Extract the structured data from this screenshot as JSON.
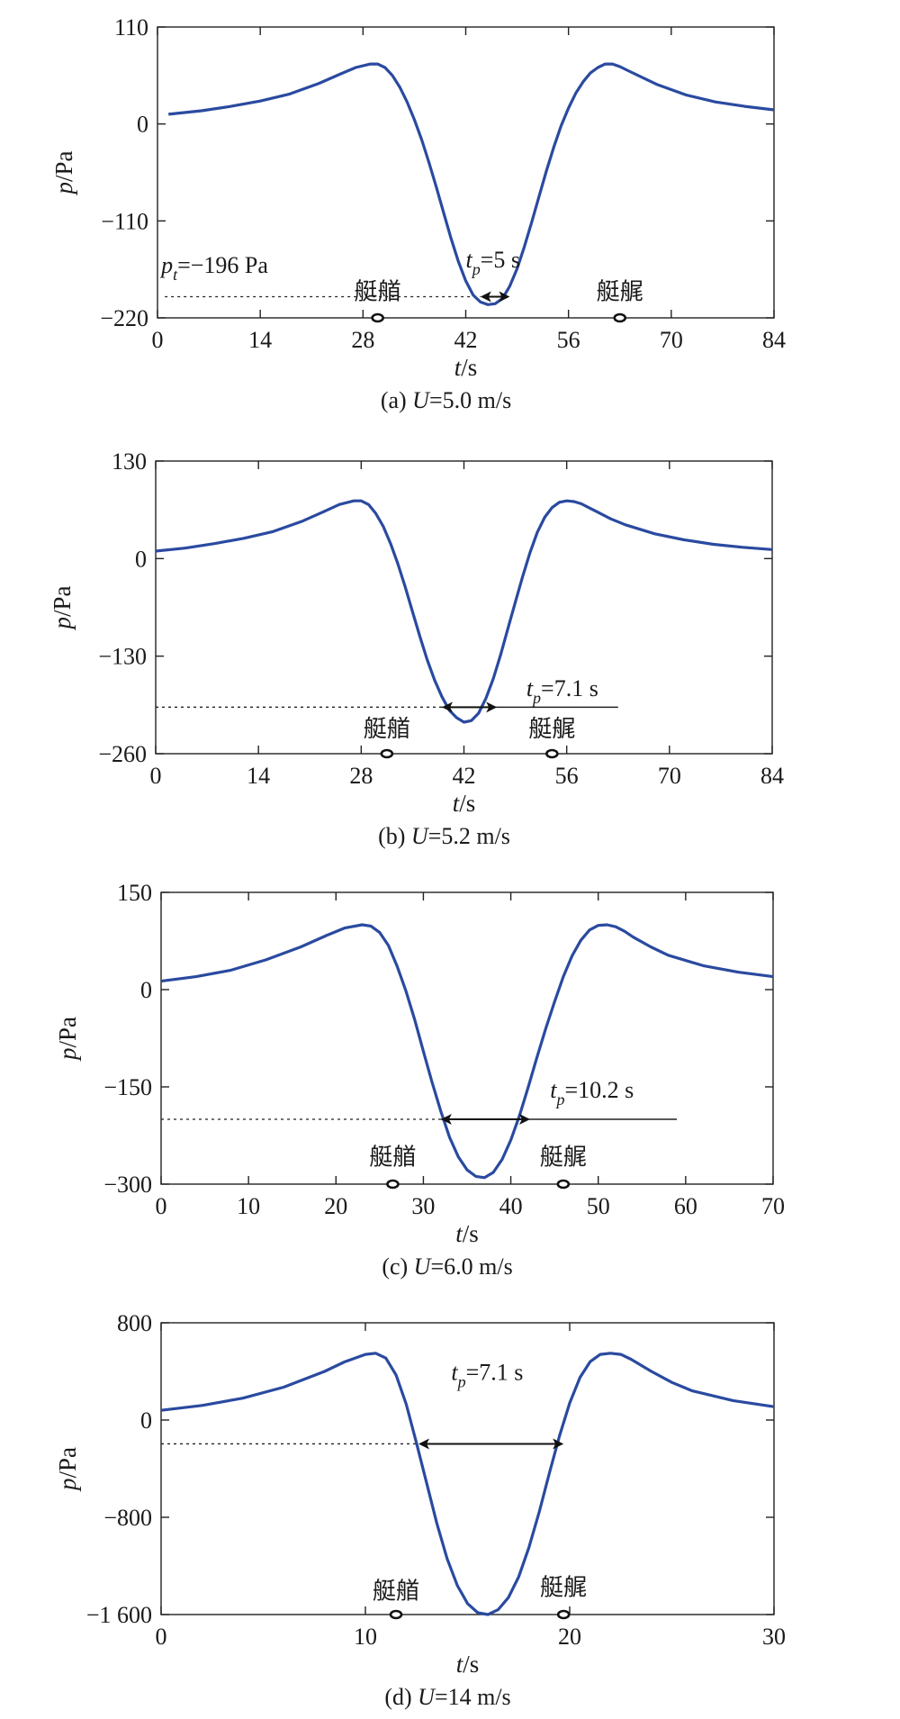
{
  "colors": {
    "curve": "#2a4aa0",
    "axis": "#222222"
  },
  "chart_data": [
    {
      "type": "line",
      "caption_prefix": "(a) ",
      "caption_var": "U",
      "caption_value": "=5.0 m/s",
      "ylabel_var": "p",
      "ylabel_unit": "/Pa",
      "xlabel_var": "t",
      "xlabel_unit": "/s",
      "xlim": [
        0,
        84
      ],
      "ylim": [
        -220,
        110
      ],
      "xticks": [
        0,
        14,
        28,
        42,
        56,
        70,
        84
      ],
      "yticks": [
        110,
        0,
        -110,
        -220
      ],
      "ytick_labels": [
        "110",
        "0",
        "−110",
        "−220"
      ],
      "series": [
        {
          "x": [
            1.5,
            6,
            10,
            14,
            18,
            22,
            25,
            27,
            29,
            30,
            31,
            32,
            33,
            34,
            35,
            36,
            37,
            38,
            39,
            40,
            41,
            42,
            43,
            44,
            45,
            46,
            47,
            48,
            49,
            50,
            51,
            52,
            53,
            54,
            55,
            56,
            57,
            58,
            59,
            60,
            61,
            62,
            63,
            64,
            66,
            68,
            72,
            76,
            80,
            84
          ],
          "y": [
            11,
            15,
            20,
            26,
            34,
            46,
            57,
            64,
            68,
            68,
            64,
            55,
            42,
            25,
            5,
            -18,
            -44,
            -72,
            -101,
            -130,
            -156,
            -178,
            -194,
            -202,
            -205,
            -204,
            -198,
            -184,
            -164,
            -139,
            -111,
            -82,
            -53,
            -26,
            -2,
            18,
            35,
            48,
            58,
            64,
            68,
            68,
            65,
            61,
            53,
            45,
            33,
            25,
            20,
            16
          ]
        }
      ],
      "reference_level": -196,
      "dotted_from": 1,
      "dotted_to": 44,
      "solid_to": null,
      "tp_text_var": "t",
      "tp_text_sub": "p",
      "tp_text_value": "=5 s",
      "tp_label_at": [
        42,
        -163
      ],
      "pt_label": {
        "var": "p",
        "sub": "t",
        "value": "=−196 Pa",
        "at": [
          0.5,
          -169
        ]
      },
      "arrow_from": 44,
      "arrow_to": 48,
      "bow": {
        "label": "艇艏",
        "x": 30,
        "label_y": -199
      },
      "stern": {
        "label": "艇艉",
        "x": 63,
        "label_y": -199
      }
    },
    {
      "type": "line",
      "caption_prefix": "(b) ",
      "caption_var": "U",
      "caption_value": "=5.2 m/s",
      "ylabel_var": "p",
      "ylabel_unit": "/Pa",
      "xlabel_var": "t",
      "xlabel_unit": "/s",
      "xlim": [
        0,
        84
      ],
      "ylim": [
        -260,
        130
      ],
      "xticks": [
        0,
        14,
        28,
        42,
        56,
        70,
        84
      ],
      "yticks": [
        130,
        0,
        -130,
        -260
      ],
      "ytick_labels": [
        "130",
        "0",
        "−130",
        "−260"
      ],
      "series": [
        {
          "x": [
            0,
            4,
            8,
            12,
            16,
            20,
            23,
            25,
            27,
            28,
            29,
            30,
            31,
            32,
            33,
            34,
            35,
            36,
            37,
            38,
            39,
            40,
            41,
            42,
            43,
            44,
            45,
            46,
            47,
            48,
            49,
            50,
            51,
            52,
            53,
            54,
            55,
            56,
            57,
            58,
            59,
            60,
            62,
            64,
            68,
            72,
            76,
            80,
            84
          ],
          "y": [
            10,
            14,
            20,
            27,
            36,
            50,
            63,
            72,
            77,
            77,
            72,
            60,
            43,
            20,
            -7,
            -38,
            -71,
            -104,
            -135,
            -162,
            -184,
            -202,
            -212,
            -218,
            -216,
            -206,
            -186,
            -160,
            -128,
            -93,
            -58,
            -24,
            8,
            35,
            55,
            68,
            75,
            77,
            76,
            73,
            68,
            63,
            53,
            45,
            33,
            25,
            19,
            15,
            12
          ]
        }
      ],
      "reference_level": -198,
      "dotted_from": 0,
      "dotted_to": 39,
      "solid_to": 63,
      "tp_text_var": "t",
      "tp_text_sub": "p",
      "tp_text_value": "=7.1 s",
      "tp_label_at": [
        50.5,
        -183
      ],
      "pt_label": null,
      "arrow_from": 39,
      "arrow_to": 46.5,
      "bow": {
        "label": "艇艏",
        "x": 31.5,
        "label_y": -237
      },
      "stern": {
        "label": "艇艉",
        "x": 54,
        "label_y": -237
      }
    },
    {
      "type": "line",
      "caption_prefix": "(c) ",
      "caption_var": "U",
      "caption_value": "=6.0 m/s",
      "ylabel_var": "p",
      "ylabel_unit": "/Pa",
      "xlabel_var": "t",
      "xlabel_unit": "/s",
      "xlim": [
        0,
        70
      ],
      "ylim": [
        -300,
        150
      ],
      "xticks": [
        0,
        10,
        20,
        30,
        40,
        50,
        60,
        70
      ],
      "yticks": [
        150,
        0,
        -150,
        -300
      ],
      "ytick_labels": [
        "150",
        "0",
        "−150",
        "−300"
      ],
      "series": [
        {
          "x": [
            0,
            4,
            8,
            12,
            16,
            19,
            21,
            23,
            24,
            25,
            26,
            27,
            28,
            29,
            30,
            31,
            32,
            33,
            34,
            35,
            36,
            37,
            38,
            39,
            40,
            41,
            42,
            43,
            44,
            45,
            46,
            47,
            48,
            49,
            50,
            51,
            52,
            53,
            54,
            56,
            58,
            62,
            66,
            70
          ],
          "y": [
            13,
            20,
            30,
            46,
            66,
            84,
            95,
            100,
            98,
            88,
            68,
            36,
            -2,
            -46,
            -95,
            -143,
            -188,
            -228,
            -258,
            -278,
            -288,
            -290,
            -282,
            -262,
            -232,
            -194,
            -150,
            -104,
            -60,
            -19,
            20,
            52,
            76,
            92,
            99,
            100,
            97,
            90,
            81,
            66,
            53,
            37,
            27,
            20
          ]
        }
      ],
      "reference_level": -200,
      "dotted_from": 0,
      "dotted_to": 32,
      "solid_to": 59,
      "tp_text_var": "t",
      "tp_text_sub": "p",
      "tp_text_value": "=10.2 s",
      "tp_label_at": [
        44.5,
        -167
      ],
      "pt_label": null,
      "arrow_from": 32,
      "arrow_to": 42.2,
      "bow": {
        "label": "艇艏",
        "x": 26.5,
        "label_y": -270
      },
      "stern": {
        "label": "艇艉",
        "x": 46,
        "label_y": -270
      }
    },
    {
      "type": "line",
      "caption_prefix": "(d) ",
      "caption_var": "U",
      "caption_value": "=14 m/s",
      "ylabel_var": "p",
      "ylabel_unit": "/Pa",
      "xlabel_var": "t",
      "xlabel_unit": "/s",
      "xlim": [
        0,
        30
      ],
      "ylim": [
        -1600,
        800
      ],
      "xticks": [
        0,
        10,
        20,
        30
      ],
      "yticks": [
        800,
        0,
        -800,
        -1600
      ],
      "ytick_labels": [
        "800",
        "0",
        "−800",
        "−1 600"
      ],
      "series": [
        {
          "x": [
            0,
            2,
            4,
            6,
            8,
            9,
            10,
            10.5,
            11,
            11.5,
            12,
            12.5,
            13,
            13.5,
            14,
            14.5,
            15,
            15.5,
            16,
            16.5,
            17,
            17.5,
            18,
            18.5,
            19,
            19.5,
            20,
            20.5,
            21,
            21.5,
            22,
            22.5,
            23,
            24,
            25,
            26,
            28,
            30
          ],
          "y": [
            80,
            120,
            180,
            270,
            400,
            480,
            540,
            550,
            510,
            370,
            130,
            -190,
            -520,
            -850,
            -1140,
            -1360,
            -1510,
            -1585,
            -1600,
            -1560,
            -1460,
            -1290,
            -1050,
            -760,
            -440,
            -130,
            140,
            350,
            480,
            540,
            550,
            540,
            500,
            400,
            310,
            240,
            160,
            110
          ]
        }
      ],
      "reference_level": -196,
      "dotted_from": 0,
      "dotted_to": 12.6,
      "solid_to": null,
      "tp_text_var": "t",
      "tp_text_sub": "p",
      "tp_text_value": "=7.1 s",
      "tp_label_at": [
        14.2,
        330
      ],
      "pt_label": null,
      "arrow_from": 12.6,
      "arrow_to": 19.7,
      "bow": {
        "label": "艇艏",
        "x": 11.5,
        "label_y": -1470
      },
      "stern": {
        "label": "艇艉",
        "x": 19.7,
        "label_y": -1440
      }
    }
  ]
}
